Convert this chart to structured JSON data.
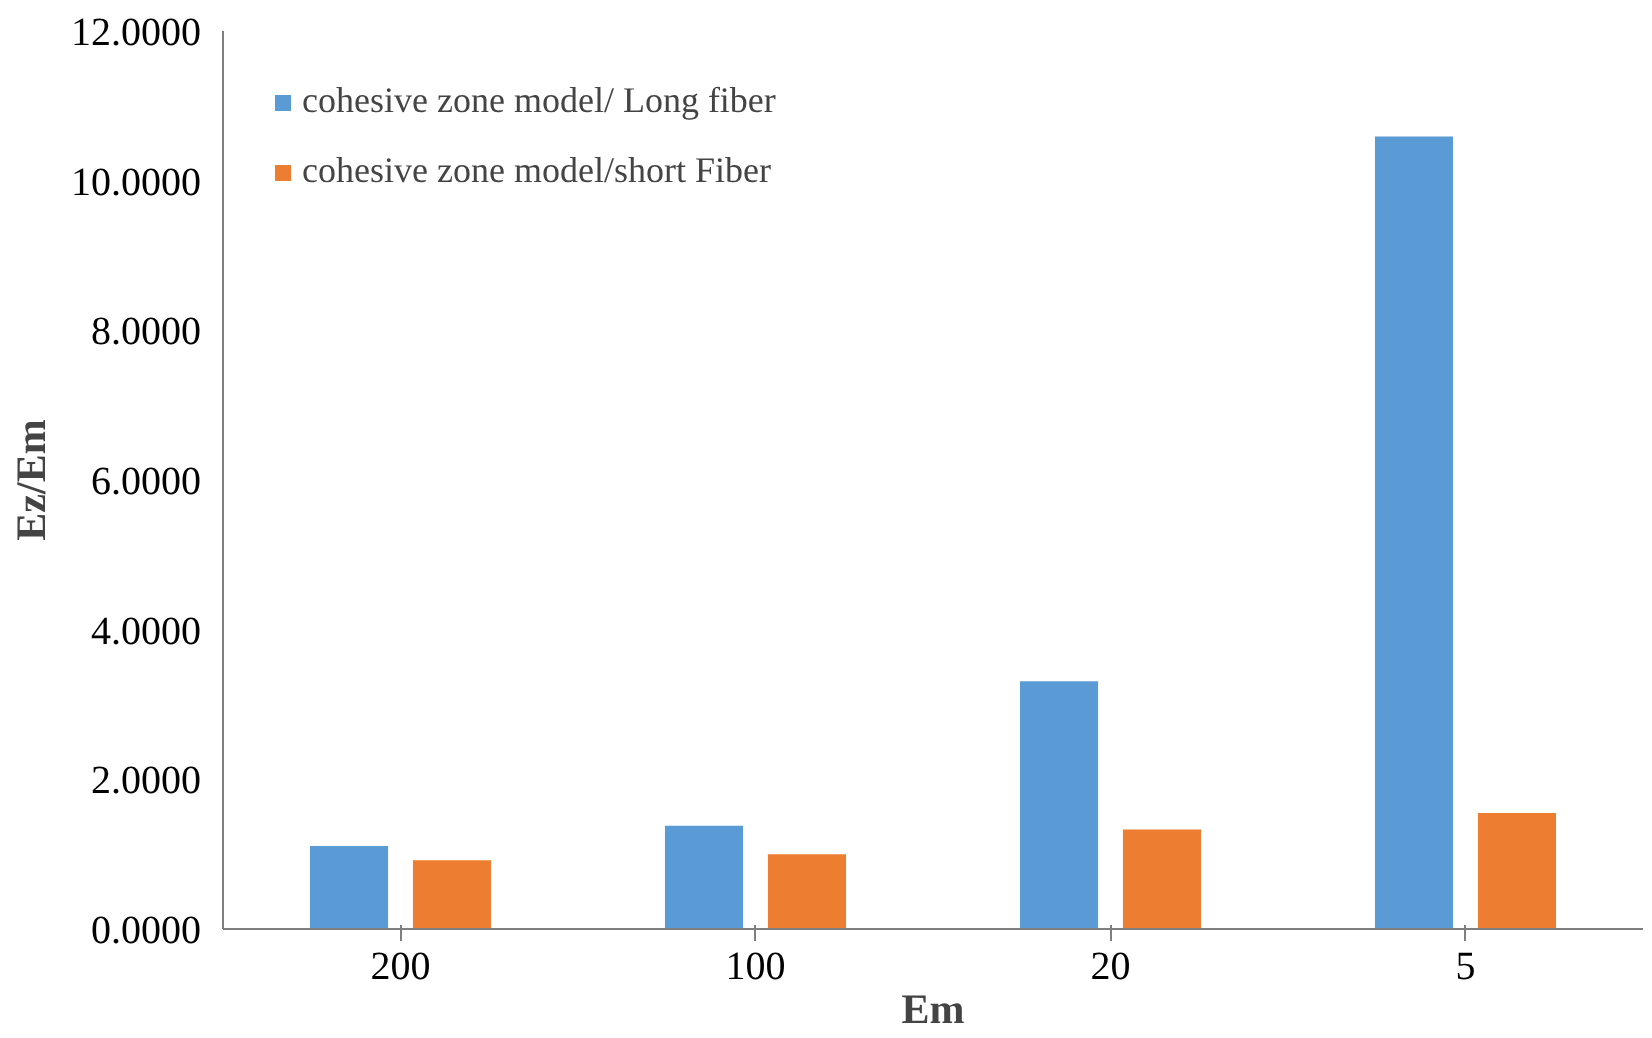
{
  "chart_data": {
    "type": "bar",
    "xlabel": "Em",
    "ylabel": "Ez/Em",
    "categories": [
      "200",
      "100",
      "20",
      "5"
    ],
    "series": [
      {
        "name": "cohesive zone model/ Long fiber",
        "color": "#5b9bd5",
        "values": [
          1.11,
          1.38,
          3.31,
          10.59
        ]
      },
      {
        "name": "cohesive zone model/short Fiber",
        "color": "#ed7d31",
        "values": [
          0.92,
          1.0,
          1.33,
          1.55
        ]
      }
    ],
    "ylim": [
      0,
      12
    ],
    "yticks": [
      {
        "value": 0,
        "label": "0.0000"
      },
      {
        "value": 2,
        "label": "2.0000"
      },
      {
        "value": 4,
        "label": "4.0000"
      },
      {
        "value": 6,
        "label": "6.0000"
      },
      {
        "value": 8,
        "label": "8.0000"
      },
      {
        "value": 10,
        "label": "10.0000"
      },
      {
        "value": 12,
        "label": "12.0000"
      }
    ],
    "grid": false,
    "legend": "top left"
  }
}
